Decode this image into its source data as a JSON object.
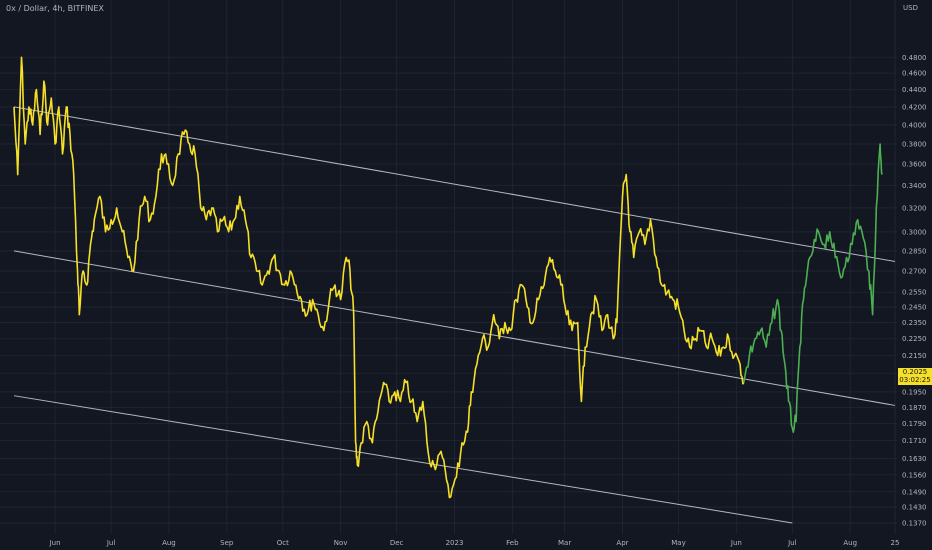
{
  "header": {
    "symbol": "0x / Dollar",
    "interval": "4h",
    "exchange": "BITFINEX",
    "currency": "USD"
  },
  "colors": {
    "background": "#131722",
    "grid": "#1f2433",
    "series_old": "#f5e027",
    "series_recent": "#4caf50",
    "channel": "#d1d4dc",
    "axis_text": "#b2b5be",
    "last_price_bg": "#f5e027"
  },
  "last_price": {
    "value": "0.2025",
    "countdown": "03:02:25"
  },
  "chart_data": {
    "type": "line",
    "scale": "log",
    "grid": true,
    "x_tick_labels": [
      "Jun",
      "Jul",
      "Aug",
      "Sep",
      "Oct",
      "Nov",
      "Dec",
      "2023",
      "Feb",
      "Mar",
      "Apr",
      "May",
      "Jun",
      "Jul",
      "Aug",
      "25"
    ],
    "y_tick_labels": [
      "0.4800",
      "0.4600",
      "0.4400",
      "0.4200",
      "0.4000",
      "0.3800",
      "0.3600",
      "0.3400",
      "0.3200",
      "0.3000",
      "0.2850",
      "0.2700",
      "0.2550",
      "0.2450",
      "0.2350",
      "0.2250",
      "0.2150",
      "0.2050",
      "0.1950",
      "0.1870",
      "0.1790",
      "0.1710",
      "0.1630",
      "0.1560",
      "0.1490",
      "0.1430",
      "0.1370"
    ],
    "x_range": [
      "2022-05-10",
      "2023-08-25"
    ],
    "y_range": [
      0.133,
      0.56
    ],
    "series": [
      {
        "segment": "older",
        "points": [
          [
            "2022-05-10",
            0.42
          ],
          [
            "2022-05-12",
            0.35
          ],
          [
            "2022-05-14",
            0.48
          ],
          [
            "2022-05-16",
            0.38
          ],
          [
            "2022-05-18",
            0.42
          ],
          [
            "2022-05-20",
            0.4
          ],
          [
            "2022-05-22",
            0.44
          ],
          [
            "2022-05-24",
            0.39
          ],
          [
            "2022-05-26",
            0.45
          ],
          [
            "2022-05-28",
            0.4
          ],
          [
            "2022-05-30",
            0.43
          ],
          [
            "2022-06-01",
            0.38
          ],
          [
            "2022-06-03",
            0.42
          ],
          [
            "2022-06-05",
            0.37
          ],
          [
            "2022-06-07",
            0.42
          ],
          [
            "2022-06-09",
            0.39
          ],
          [
            "2022-06-11",
            0.35
          ],
          [
            "2022-06-13",
            0.27
          ],
          [
            "2022-06-14",
            0.24
          ],
          [
            "2022-06-16",
            0.27
          ],
          [
            "2022-06-18",
            0.26
          ],
          [
            "2022-06-20",
            0.29
          ],
          [
            "2022-06-22",
            0.31
          ],
          [
            "2022-06-25",
            0.33
          ],
          [
            "2022-06-28",
            0.3
          ],
          [
            "2022-07-01",
            0.31
          ],
          [
            "2022-07-04",
            0.32
          ],
          [
            "2022-07-07",
            0.3
          ],
          [
            "2022-07-10",
            0.28
          ],
          [
            "2022-07-13",
            0.27
          ],
          [
            "2022-07-16",
            0.31
          ],
          [
            "2022-07-19",
            0.33
          ],
          [
            "2022-07-22",
            0.31
          ],
          [
            "2022-07-25",
            0.33
          ],
          [
            "2022-07-28",
            0.37
          ],
          [
            "2022-07-31",
            0.36
          ],
          [
            "2022-08-03",
            0.34
          ],
          [
            "2022-08-06",
            0.37
          ],
          [
            "2022-08-09",
            0.39
          ],
          [
            "2022-08-12",
            0.38
          ],
          [
            "2022-08-15",
            0.37
          ],
          [
            "2022-08-18",
            0.32
          ],
          [
            "2022-08-21",
            0.31
          ],
          [
            "2022-08-24",
            0.32
          ],
          [
            "2022-08-27",
            0.3
          ],
          [
            "2022-08-30",
            0.31
          ],
          [
            "2022-09-02",
            0.3
          ],
          [
            "2022-09-05",
            0.31
          ],
          [
            "2022-09-08",
            0.33
          ],
          [
            "2022-09-11",
            0.31
          ],
          [
            "2022-09-14",
            0.28
          ],
          [
            "2022-09-17",
            0.27
          ],
          [
            "2022-09-20",
            0.26
          ],
          [
            "2022-09-23",
            0.27
          ],
          [
            "2022-09-26",
            0.28
          ],
          [
            "2022-09-29",
            0.27
          ],
          [
            "2022-10-02",
            0.26
          ],
          [
            "2022-10-05",
            0.27
          ],
          [
            "2022-10-08",
            0.26
          ],
          [
            "2022-10-11",
            0.25
          ],
          [
            "2022-10-14",
            0.24
          ],
          [
            "2022-10-17",
            0.25
          ],
          [
            "2022-10-20",
            0.24
          ],
          [
            "2022-10-23",
            0.23
          ],
          [
            "2022-10-26",
            0.25
          ],
          [
            "2022-10-29",
            0.26
          ],
          [
            "2022-11-01",
            0.25
          ],
          [
            "2022-11-04",
            0.28
          ],
          [
            "2022-11-06",
            0.27
          ],
          [
            "2022-11-08",
            0.24
          ],
          [
            "2022-11-09",
            0.17
          ],
          [
            "2022-11-10",
            0.16
          ],
          [
            "2022-11-12",
            0.17
          ],
          [
            "2022-11-15",
            0.18
          ],
          [
            "2022-11-18",
            0.17
          ],
          [
            "2022-11-21",
            0.185
          ],
          [
            "2022-11-24",
            0.2
          ],
          [
            "2022-11-27",
            0.19
          ],
          [
            "2022-11-30",
            0.195
          ],
          [
            "2022-12-03",
            0.19
          ],
          [
            "2022-12-06",
            0.2
          ],
          [
            "2022-12-09",
            0.19
          ],
          [
            "2022-12-12",
            0.18
          ],
          [
            "2022-12-15",
            0.19
          ],
          [
            "2022-12-18",
            0.165
          ],
          [
            "2022-12-21",
            0.16
          ],
          [
            "2022-12-24",
            0.165
          ],
          [
            "2022-12-27",
            0.158
          ],
          [
            "2022-12-30",
            0.147
          ],
          [
            "2023-01-02",
            0.155
          ],
          [
            "2023-01-05",
            0.17
          ],
          [
            "2023-01-08",
            0.175
          ],
          [
            "2023-01-10",
            0.195
          ],
          [
            "2023-01-13",
            0.21
          ],
          [
            "2023-01-16",
            0.225
          ],
          [
            "2023-01-19",
            0.22
          ],
          [
            "2023-01-22",
            0.24
          ],
          [
            "2023-01-25",
            0.225
          ],
          [
            "2023-01-28",
            0.235
          ],
          [
            "2023-01-31",
            0.23
          ],
          [
            "2023-02-03",
            0.25
          ],
          [
            "2023-02-06",
            0.26
          ],
          [
            "2023-02-09",
            0.245
          ],
          [
            "2023-02-12",
            0.235
          ],
          [
            "2023-02-15",
            0.25
          ],
          [
            "2023-02-18",
            0.26
          ],
          [
            "2023-02-21",
            0.28
          ],
          [
            "2023-02-24",
            0.27
          ],
          [
            "2023-02-27",
            0.26
          ],
          [
            "2023-03-02",
            0.24
          ],
          [
            "2023-03-05",
            0.23
          ],
          [
            "2023-03-08",
            0.235
          ],
          [
            "2023-03-10",
            0.19
          ],
          [
            "2023-03-12",
            0.22
          ],
          [
            "2023-03-15",
            0.24
          ],
          [
            "2023-03-18",
            0.25
          ],
          [
            "2023-03-21",
            0.23
          ],
          [
            "2023-03-24",
            0.24
          ],
          [
            "2023-03-27",
            0.225
          ],
          [
            "2023-03-29",
            0.235
          ],
          [
            "2023-04-01",
            0.33
          ],
          [
            "2023-04-03",
            0.35
          ],
          [
            "2023-04-05",
            0.3
          ],
          [
            "2023-04-07",
            0.28
          ],
          [
            "2023-04-10",
            0.3
          ],
          [
            "2023-04-13",
            0.29
          ],
          [
            "2023-04-16",
            0.31
          ],
          [
            "2023-04-19",
            0.28
          ],
          [
            "2023-04-22",
            0.26
          ],
          [
            "2023-04-25",
            0.255
          ],
          [
            "2023-04-28",
            0.25
          ],
          [
            "2023-05-01",
            0.245
          ],
          [
            "2023-05-04",
            0.23
          ],
          [
            "2023-05-07",
            0.22
          ],
          [
            "2023-05-10",
            0.225
          ],
          [
            "2023-05-13",
            0.23
          ],
          [
            "2023-05-16",
            0.22
          ],
          [
            "2023-05-19",
            0.225
          ],
          [
            "2023-05-22",
            0.215
          ],
          [
            "2023-05-25",
            0.22
          ],
          [
            "2023-05-28",
            0.225
          ],
          [
            "2023-05-31",
            0.215
          ],
          [
            "2023-06-03",
            0.21
          ],
          [
            "2023-06-05",
            0.2
          ]
        ]
      },
      {
        "segment": "recent",
        "points": [
          [
            "2023-06-05",
            0.2
          ],
          [
            "2023-06-08",
            0.215
          ],
          [
            "2023-06-11",
            0.225
          ],
          [
            "2023-06-14",
            0.23
          ],
          [
            "2023-06-17",
            0.22
          ],
          [
            "2023-06-20",
            0.235
          ],
          [
            "2023-06-23",
            0.25
          ],
          [
            "2023-06-25",
            0.23
          ],
          [
            "2023-06-27",
            0.21
          ],
          [
            "2023-06-29",
            0.19
          ],
          [
            "2023-07-01",
            0.177
          ],
          [
            "2023-07-03",
            0.18
          ],
          [
            "2023-07-05",
            0.22
          ],
          [
            "2023-07-07",
            0.25
          ],
          [
            "2023-07-09",
            0.27
          ],
          [
            "2023-07-12",
            0.285
          ],
          [
            "2023-07-15",
            0.3
          ],
          [
            "2023-07-18",
            0.29
          ],
          [
            "2023-07-21",
            0.3
          ],
          [
            "2023-07-24",
            0.28
          ],
          [
            "2023-07-27",
            0.265
          ],
          [
            "2023-07-30",
            0.28
          ],
          [
            "2023-08-02",
            0.29
          ],
          [
            "2023-08-05",
            0.31
          ],
          [
            "2023-08-08",
            0.295
          ],
          [
            "2023-08-11",
            0.27
          ],
          [
            "2023-08-13",
            0.24
          ],
          [
            "2023-08-15",
            0.32
          ],
          [
            "2023-08-17",
            0.38
          ],
          [
            "2023-08-18",
            0.35
          ]
        ]
      }
    ],
    "channel_lines": [
      {
        "from": [
          "2022-05-10",
          0.42
        ],
        "to": [
          "2023-08-25",
          0.277
        ]
      },
      {
        "from": [
          "2022-05-10",
          0.285
        ],
        "to": [
          "2023-08-25",
          0.188
        ]
      },
      {
        "from": [
          "2022-05-10",
          0.193
        ],
        "to": [
          "2023-07-01",
          0.137
        ]
      }
    ]
  }
}
